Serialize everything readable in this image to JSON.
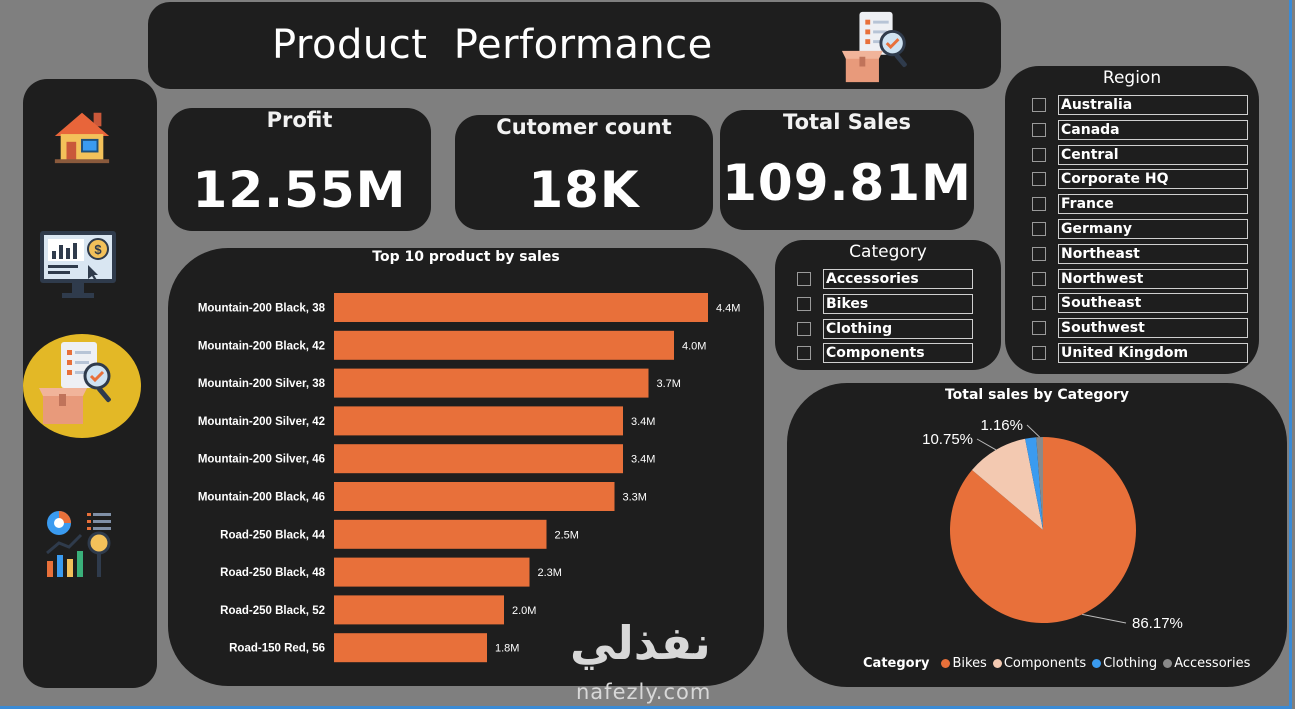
{
  "header": {
    "title": "Product  Performance",
    "icon": "product-checklist-icon"
  },
  "nav": {
    "items": [
      {
        "name": "home",
        "icon": "home-icon",
        "active": false
      },
      {
        "name": "sales-dashboard",
        "icon": "dashboard-monitor-icon",
        "active": false
      },
      {
        "name": "product-performance",
        "icon": "product-checklist-icon",
        "active": true
      },
      {
        "name": "analytics",
        "icon": "analytics-chart-icon",
        "active": false
      }
    ],
    "active_color": "#e3b826"
  },
  "kpis": [
    {
      "label": "Profit",
      "value": "12.55M"
    },
    {
      "label": "Cutomer count",
      "value": "18K"
    },
    {
      "label": "Total Sales",
      "value": "109.81M"
    }
  ],
  "category_slicer": {
    "title": "Category",
    "options": [
      "Accessories",
      "Bikes",
      "Clothing",
      "Components"
    ]
  },
  "region_slicer": {
    "title": "Region",
    "options": [
      "Australia",
      "Canada",
      "Central",
      "Corporate HQ",
      "France",
      "Germany",
      "Northeast",
      "Northwest",
      "Southeast",
      "Southwest",
      "United Kingdom"
    ]
  },
  "chart_data": [
    {
      "type": "bar",
      "orientation": "horizontal",
      "title": "Top 10 product by sales",
      "categories": [
        "Mountain-200 Black, 38",
        "Mountain-200 Black, 42",
        "Mountain-200 Silver, 38",
        "Mountain-200 Silver, 42",
        "Mountain-200 Silver, 46",
        "Mountain-200 Black, 46",
        "Road-250 Black, 44",
        "Road-250 Black, 48",
        "Road-250 Black, 52",
        "Road-150 Red, 56"
      ],
      "values": [
        4.4,
        4.0,
        3.7,
        3.4,
        3.4,
        3.3,
        2.5,
        2.3,
        2.0,
        1.8
      ],
      "value_labels": [
        "4.4M",
        "4.0M",
        "3.7M",
        "3.4M",
        "3.4M",
        "3.3M",
        "2.5M",
        "2.3M",
        "2.0M",
        "1.8M"
      ],
      "xlim": [
        0,
        4.4
      ],
      "bar_color": "#e8703a"
    },
    {
      "type": "pie",
      "title": "Total sales by Category",
      "legend_title": "Category",
      "legend_position": "bottom",
      "labels": [
        "Bikes",
        "Components",
        "Clothing",
        "Accessories"
      ],
      "values": [
        86.17,
        10.75,
        1.92,
        1.16
      ],
      "value_labels": [
        "86.17%",
        "10.75%",
        "",
        "1.16%"
      ],
      "colors": [
        "#e8703a",
        "#f3c9b1",
        "#3a9bf0",
        "#8a8a8a"
      ]
    }
  ],
  "watermark": {
    "arabic": "نفذلي",
    "latin": "nafezly.com"
  }
}
